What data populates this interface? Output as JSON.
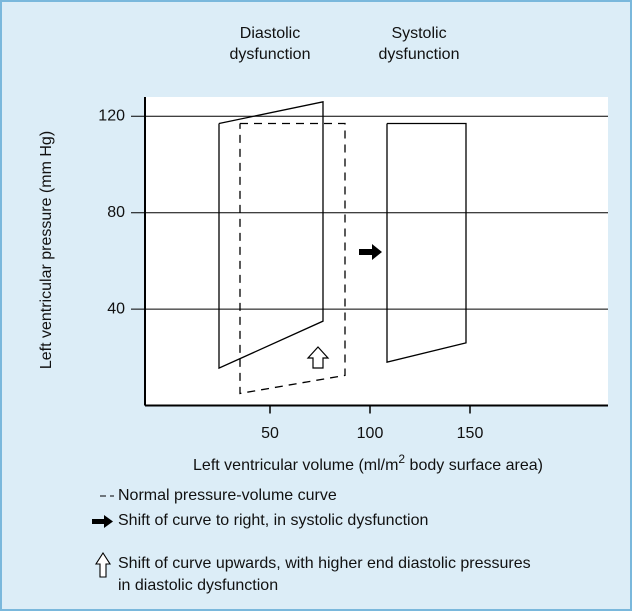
{
  "chart_data": {
    "type": "line",
    "column_titles": [
      [
        "Diastolic",
        "dysfunction"
      ],
      [
        "Systolic",
        "dysfunction"
      ]
    ],
    "x_label": {
      "before": "Left ventricular volume (ml/m",
      "sup": "2",
      "after": " body surface area)"
    },
    "y_label": "Left ventricular pressure (mm Hg)",
    "xlim": [
      -12.5,
      219
    ],
    "ylim": [
      0,
      128
    ],
    "xticks": [
      50,
      100,
      150
    ],
    "yticks": [
      40,
      80,
      120
    ],
    "grid": true,
    "series": [
      {
        "color": "#000000",
        "dash": false,
        "x": [
          24.5,
          76.5,
          76.5,
          24.5,
          24.5
        ],
        "values": [
          117,
          126,
          35,
          15.5,
          117
        ]
      },
      {
        "color": "#000000",
        "dash": true,
        "x": [
          35,
          87.5,
          87.5,
          35,
          35
        ],
        "values": [
          117,
          117,
          12.5,
          5,
          117
        ]
      },
      {
        "color": "#000000",
        "dash": false,
        "x": [
          108.5,
          148,
          148,
          108.5,
          108.5
        ],
        "values": [
          117,
          117,
          26,
          18,
          117
        ]
      }
    ],
    "legend": [
      [
        "Normal pressure-volume curve"
      ],
      [
        "Shift of curve to right, in systolic dysfunction"
      ],
      [
        "Shift of curve upwards, with higher end diastolic pressures",
        "in diastolic dysfunction"
      ]
    ]
  }
}
